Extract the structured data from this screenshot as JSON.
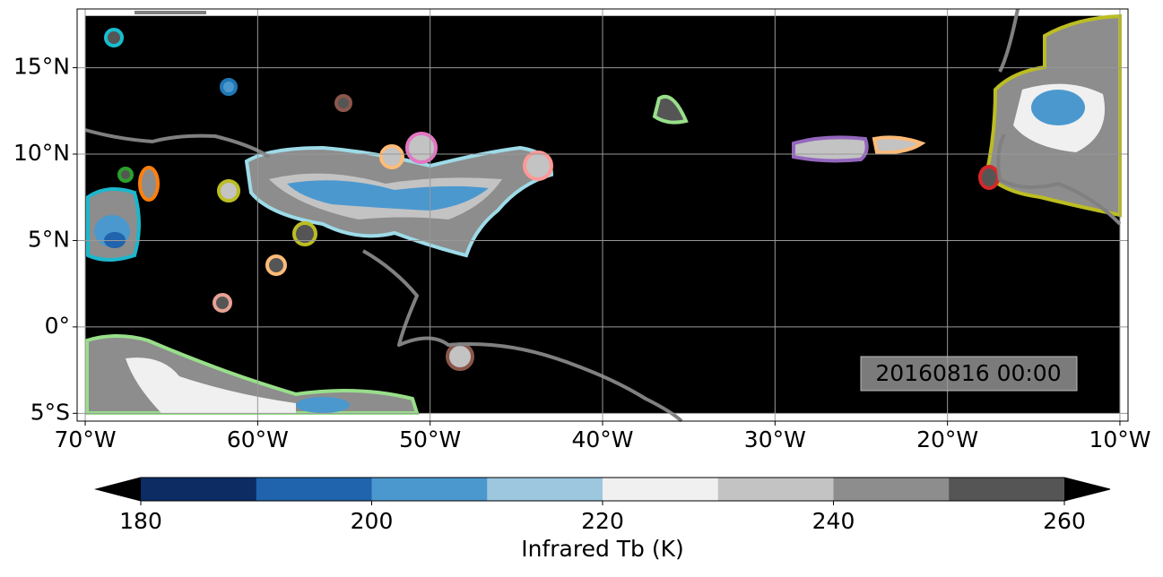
{
  "map": {
    "xlim": [
      -70.47,
      -9.53
    ],
    "ylim": [
      -5.45,
      18.4
    ],
    "data_extent": {
      "lon": [
        -70,
        -10
      ],
      "lat": [
        -5,
        18
      ]
    },
    "xticks": [
      {
        "value": -70,
        "label": "70°W"
      },
      {
        "value": -60,
        "label": "60°W"
      },
      {
        "value": -50,
        "label": "50°W"
      },
      {
        "value": -40,
        "label": "40°W"
      },
      {
        "value": -30,
        "label": "30°W"
      },
      {
        "value": -20,
        "label": "20°W"
      },
      {
        "value": -10,
        "label": "10°W"
      }
    ],
    "yticks": [
      {
        "value": -5,
        "label": "5°S"
      },
      {
        "value": 0,
        "label": "0°"
      },
      {
        "value": 5,
        "label": "5°N"
      },
      {
        "value": 10,
        "label": "10°N"
      },
      {
        "value": 15,
        "label": "15°N"
      }
    ],
    "grid": true,
    "timestamp": "20160816 00:00"
  },
  "colorbar": {
    "label": "Infrared Tb (K)",
    "lim": [
      180,
      260
    ],
    "ticks": [
      180,
      200,
      220,
      240,
      260
    ],
    "levels": [
      180,
      190,
      200,
      210,
      220,
      230,
      240,
      250,
      260
    ],
    "colors": [
      "#0c2c63",
      "#1f64ad",
      "#4b98cf",
      "#9dc7df",
      "#f0f0f0",
      "#c3c3c3",
      "#8d8d8d",
      "#555555"
    ],
    "extend_colors": [
      "#000000",
      "#000000"
    ]
  }
}
